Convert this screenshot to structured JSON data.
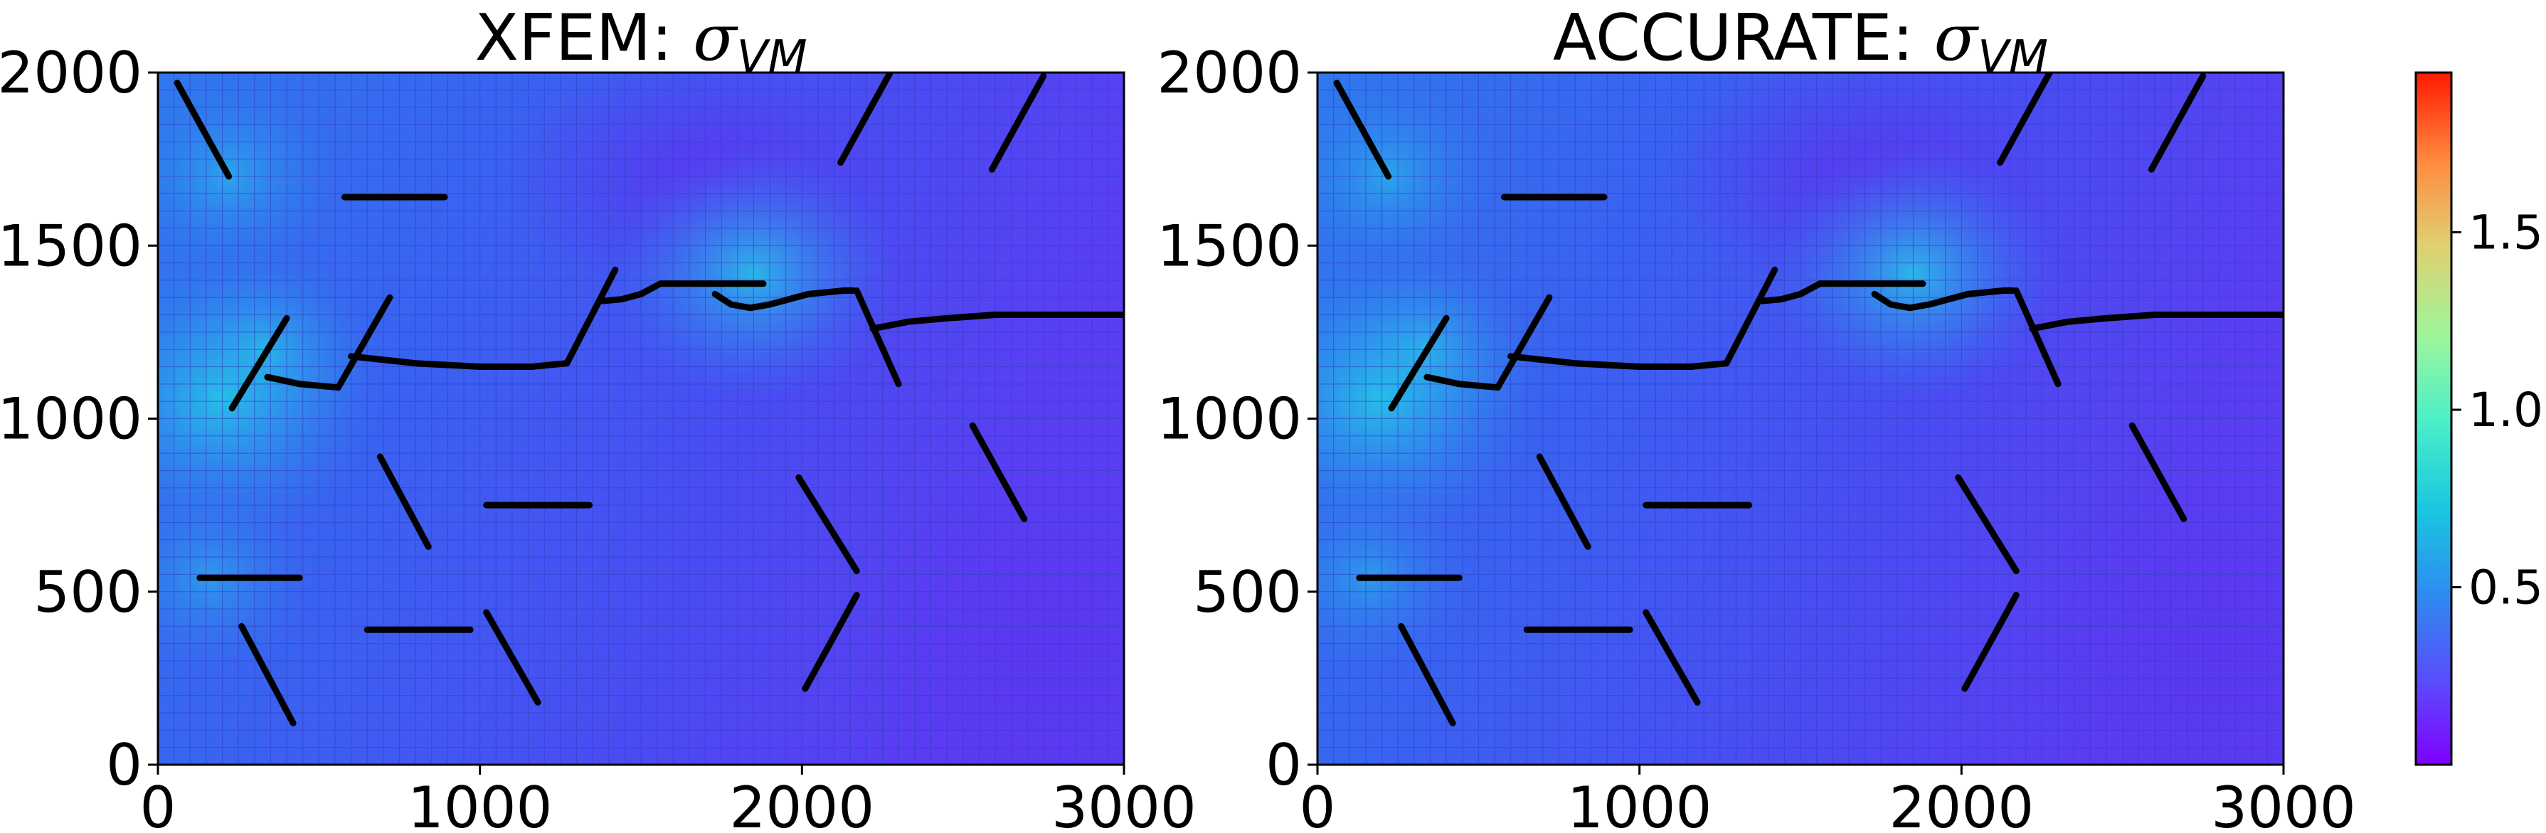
{
  "chart_data": [
    {
      "type": "heatmap",
      "title": "XFEM: ",
      "title_symbol": "σ",
      "title_subscript": "VM",
      "xlim": [
        0,
        3000
      ],
      "ylim": [
        0,
        2000
      ],
      "x_ticks": [
        "0",
        "1000",
        "2000",
        "3000"
      ],
      "y_ticks": [
        "0",
        "500",
        "1000",
        "1500",
        "2000"
      ],
      "grid": true,
      "crack_paths": [
        [
          [
            60,
            1970
          ],
          [
            220,
            1700
          ]
        ],
        [
          [
            580,
            1640
          ],
          [
            890,
            1640
          ]
        ],
        [
          [
            230,
            1030
          ],
          [
            400,
            1290
          ]
        ],
        [
          [
            560,
            1090
          ],
          [
            720,
            1350
          ]
        ],
        [
          [
            1270,
            1160
          ],
          [
            1420,
            1430
          ]
        ],
        [
          [
            2120,
            1740
          ],
          [
            2280,
            2010
          ]
        ],
        [
          [
            2590,
            1720
          ],
          [
            2750,
            1990
          ]
        ],
        [
          [
            2170,
            1370
          ],
          [
            2300,
            1100
          ]
        ],
        [
          [
            690,
            890
          ],
          [
            840,
            630
          ]
        ],
        [
          [
            1020,
            750
          ],
          [
            1340,
            750
          ]
        ],
        [
          [
            1990,
            830
          ],
          [
            2170,
            560
          ]
        ],
        [
          [
            2530,
            980
          ],
          [
            2690,
            710
          ]
        ],
        [
          [
            130,
            540
          ],
          [
            440,
            540
          ]
        ],
        [
          [
            260,
            400
          ],
          [
            420,
            120
          ]
        ],
        [
          [
            650,
            390
          ],
          [
            970,
            390
          ]
        ],
        [
          [
            1020,
            440
          ],
          [
            1180,
            180
          ]
        ],
        [
          [
            2010,
            220
          ],
          [
            2170,
            490
          ]
        ],
        [
          [
            340,
            1120
          ],
          [
            440,
            1100
          ],
          [
            560,
            1090
          ]
        ],
        [
          [
            600,
            1180
          ],
          [
            800,
            1160
          ],
          [
            1000,
            1150
          ],
          [
            1160,
            1150
          ],
          [
            1270,
            1160
          ]
        ],
        [
          [
            1380,
            1340
          ],
          [
            1440,
            1345
          ],
          [
            1500,
            1360
          ],
          [
            1560,
            1390
          ],
          [
            1880,
            1390
          ]
        ],
        [
          [
            1730,
            1360
          ],
          [
            1780,
            1330
          ],
          [
            1840,
            1320
          ],
          [
            1900,
            1330
          ],
          [
            2020,
            1360
          ],
          [
            2130,
            1370
          ],
          [
            2160,
            1370
          ]
        ],
        [
          [
            2220,
            1260
          ],
          [
            2330,
            1280
          ],
          [
            2450,
            1290
          ],
          [
            2600,
            1300
          ],
          [
            3000,
            1300
          ]
        ]
      ],
      "stress_concentrations": [
        {
          "x": 200,
          "y": 1060,
          "level": 0.85
        },
        {
          "x": 1850,
          "y": 1420,
          "level": 0.75
        },
        {
          "x": 220,
          "y": 1700,
          "level": 0.5
        },
        {
          "x": 160,
          "y": 540,
          "level": 0.45
        },
        {
          "x": 330,
          "y": 1200,
          "level": 0.5
        }
      ]
    },
    {
      "type": "heatmap",
      "title": "ACCURATE: ",
      "title_symbol": "σ",
      "title_subscript": "VM",
      "xlim": [
        0,
        3000
      ],
      "ylim": [
        0,
        2000
      ],
      "x_ticks": [
        "0",
        "1000",
        "2000",
        "3000"
      ],
      "y_ticks": [
        "0",
        "500",
        "1000",
        "1500",
        "2000"
      ],
      "grid": true,
      "crack_paths": [
        [
          [
            60,
            1970
          ],
          [
            220,
            1700
          ]
        ],
        [
          [
            580,
            1640
          ],
          [
            890,
            1640
          ]
        ],
        [
          [
            230,
            1030
          ],
          [
            400,
            1290
          ]
        ],
        [
          [
            560,
            1090
          ],
          [
            720,
            1350
          ]
        ],
        [
          [
            1270,
            1160
          ],
          [
            1420,
            1430
          ]
        ],
        [
          [
            2120,
            1740
          ],
          [
            2280,
            2010
          ]
        ],
        [
          [
            2590,
            1720
          ],
          [
            2750,
            1990
          ]
        ],
        [
          [
            2170,
            1370
          ],
          [
            2300,
            1100
          ]
        ],
        [
          [
            690,
            890
          ],
          [
            840,
            630
          ]
        ],
        [
          [
            1020,
            750
          ],
          [
            1340,
            750
          ]
        ],
        [
          [
            1990,
            830
          ],
          [
            2170,
            560
          ]
        ],
        [
          [
            2530,
            980
          ],
          [
            2690,
            710
          ]
        ],
        [
          [
            130,
            540
          ],
          [
            440,
            540
          ]
        ],
        [
          [
            260,
            400
          ],
          [
            420,
            120
          ]
        ],
        [
          [
            650,
            390
          ],
          [
            970,
            390
          ]
        ],
        [
          [
            1020,
            440
          ],
          [
            1180,
            180
          ]
        ],
        [
          [
            2010,
            220
          ],
          [
            2170,
            490
          ]
        ],
        [
          [
            340,
            1120
          ],
          [
            440,
            1100
          ],
          [
            560,
            1090
          ]
        ],
        [
          [
            600,
            1180
          ],
          [
            800,
            1160
          ],
          [
            1000,
            1150
          ],
          [
            1160,
            1150
          ],
          [
            1270,
            1160
          ]
        ],
        [
          [
            1380,
            1340
          ],
          [
            1440,
            1345
          ],
          [
            1500,
            1360
          ],
          [
            1560,
            1390
          ],
          [
            1880,
            1390
          ]
        ],
        [
          [
            1730,
            1360
          ],
          [
            1780,
            1330
          ],
          [
            1840,
            1320
          ],
          [
            1900,
            1330
          ],
          [
            2020,
            1360
          ],
          [
            2130,
            1370
          ],
          [
            2160,
            1370
          ]
        ],
        [
          [
            2220,
            1260
          ],
          [
            2330,
            1280
          ],
          [
            2450,
            1290
          ],
          [
            2600,
            1300
          ],
          [
            3000,
            1300
          ]
        ]
      ],
      "stress_concentrations": [
        {
          "x": 200,
          "y": 1060,
          "level": 0.85
        },
        {
          "x": 1850,
          "y": 1420,
          "level": 0.75
        },
        {
          "x": 220,
          "y": 1700,
          "level": 0.5
        },
        {
          "x": 160,
          "y": 540,
          "level": 0.45
        },
        {
          "x": 330,
          "y": 1200,
          "level": 0.5
        }
      ]
    }
  ],
  "colorbar": {
    "colormap": "rainbow",
    "range": [
      0,
      1.95
    ],
    "ticks": [
      0.5,
      1.0,
      1.5
    ],
    "tick_labels": [
      "0.5",
      "1.0",
      "1.5"
    ]
  },
  "colors": {
    "background_field": "#3d5cf2",
    "field_low": "#5a36f0",
    "crack": "#000000",
    "grid": "#2f3fc0"
  }
}
